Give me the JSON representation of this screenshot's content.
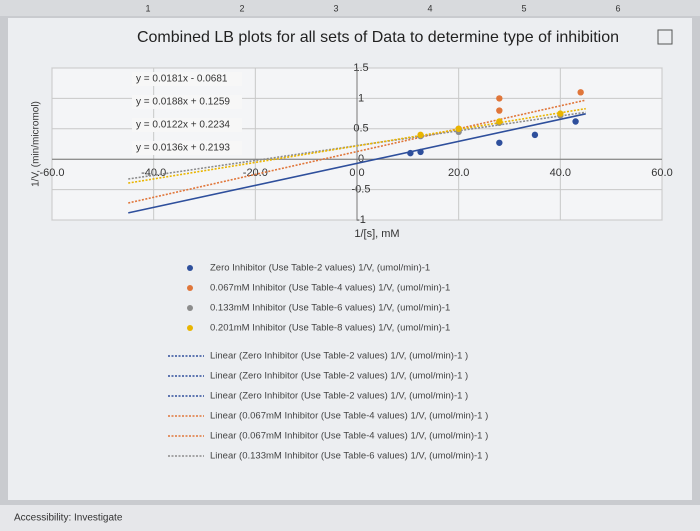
{
  "ruler": [
    "1",
    "2",
    "3",
    "4",
    "5",
    "6"
  ],
  "status_bar": "Accessibility: Investigate",
  "chart_data": {
    "type": "scatter",
    "title": "Combined LB plots for all sets of Data to determine type of inhibition",
    "x_label": "1/[s], mM",
    "y_label": "1/V, (min/micromol)",
    "xlim": [
      -60,
      60
    ],
    "xticks": [
      {
        "value": -60,
        "label": "-60.0"
      },
      {
        "value": -40,
        "label": "-40.0"
      },
      {
        "value": -20,
        "label": "-20.0"
      },
      {
        "value": 0,
        "label": "0.0"
      },
      {
        "value": 20,
        "label": "20.0"
      },
      {
        "value": 40,
        "label": "40.0"
      },
      {
        "value": 60,
        "label": "60.0"
      }
    ],
    "ylim": [
      -1,
      1.5
    ],
    "yticks": [
      -1,
      -0.5,
      0,
      0.5,
      1,
      1.5
    ],
    "grid": true,
    "equations": [
      "y = 0.0181x - 0.0681",
      "y = 0.0188x + 0.1259",
      "y = 0.0122x + 0.2234",
      "y = 0.0136x + 0.2193"
    ],
    "series": [
      {
        "name": "Zero Inhibitor   (Use Table-2 values) 1/V, (umol/min)-1",
        "color": "#2e4f9c",
        "x": [
          10.5,
          12.5,
          28,
          35,
          43
        ],
        "values": [
          0.1,
          0.12,
          0.27,
          0.4,
          0.62
        ],
        "trendline": {
          "slope": 0.0181,
          "intercept": -0.0681
        }
      },
      {
        "name": "0.067mM Inhibitor (Use Table-4 values) 1/V, (umol/min)-1",
        "color": "#e0763a",
        "x": [
          20,
          28,
          28,
          44
        ],
        "values": [
          0.5,
          0.8,
          1.0,
          1.1
        ],
        "trendline": {
          "slope": 0.0188,
          "intercept": 0.1259
        }
      },
      {
        "name": "0.133mM Inhibitor (Use Table-6 values) 1/V, (umol/min)-1",
        "color": "#8c8c8c",
        "x": [
          12.5,
          20,
          28,
          40
        ],
        "values": [
          0.38,
          0.45,
          0.6,
          0.72
        ],
        "trendline": {
          "slope": 0.0122,
          "intercept": 0.2234
        }
      },
      {
        "name": "0.201mM Inhibitor (Use Table-8 values) 1/V, (umol/min)-1",
        "color": "#e9b500",
        "x": [
          12.5,
          20,
          28,
          40
        ],
        "values": [
          0.4,
          0.5,
          0.62,
          0.75
        ],
        "trendline": {
          "slope": 0.0136,
          "intercept": 0.2193
        }
      }
    ],
    "trendline_legend": [
      "Linear (Zero Inhibitor   (Use Table-2 values) 1/V, (umol/min)-1 )",
      "Linear (Zero Inhibitor   (Use Table-2 values) 1/V, (umol/min)-1 )",
      "Linear (Zero Inhibitor   (Use Table-2 values) 1/V, (umol/min)-1 )",
      "Linear (0.067mM Inhibitor (Use Table-4 values) 1/V, (umol/min)-1 )",
      "Linear (0.067mM Inhibitor (Use Table-4 values) 1/V, (umol/min)-1 )",
      "Linear (0.133mM Inhibitor (Use Table-6 values) 1/V, (umol/min)-1 )"
    ],
    "trendline_legend_colors": [
      "#2e4f9c",
      "#2e4f9c",
      "#2e4f9c",
      "#e0763a",
      "#e0763a",
      "#8c8c8c"
    ]
  }
}
